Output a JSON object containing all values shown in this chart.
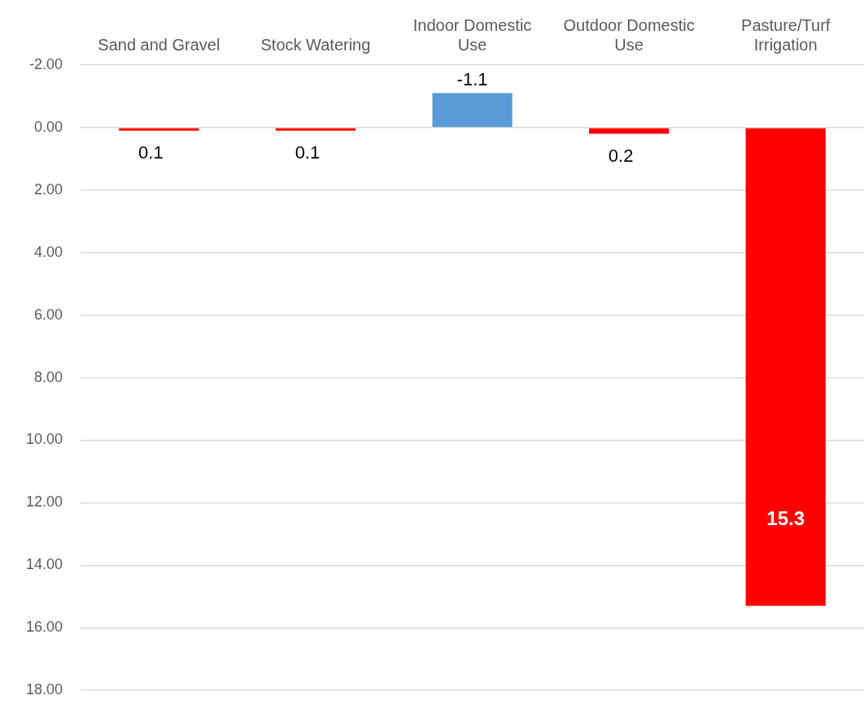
{
  "chart_data": {
    "type": "bar",
    "categories": [
      "Sand and Gravel",
      "Stock Watering",
      "Indoor Domestic Use",
      "Outdoor Domestic Use",
      "Pasture/Turf Irrigation"
    ],
    "values": [
      0.1,
      0.1,
      -1.1,
      0.2,
      15.3
    ],
    "colors": [
      "#ff0000",
      "#ff0000",
      "#5b9bd5",
      "#ff0000",
      "#ff0000"
    ],
    "ylim": [
      18,
      -2
    ],
    "yticks": [
      {
        "value": -2,
        "label": "-2.00"
      },
      {
        "value": 0,
        "label": "0.00"
      },
      {
        "value": 2,
        "label": "2.00"
      },
      {
        "value": 4,
        "label": "4.00"
      },
      {
        "value": 6,
        "label": "6.00"
      },
      {
        "value": 8,
        "label": "8.00"
      },
      {
        "value": 10,
        "label": "10.00"
      },
      {
        "value": 12,
        "label": "12.00"
      },
      {
        "value": 14,
        "label": "14.00"
      },
      {
        "value": 16,
        "label": "16.00"
      },
      {
        "value": 18,
        "label": "18.00"
      }
    ],
    "grid": "y",
    "legend": false,
    "data_labels": true
  }
}
